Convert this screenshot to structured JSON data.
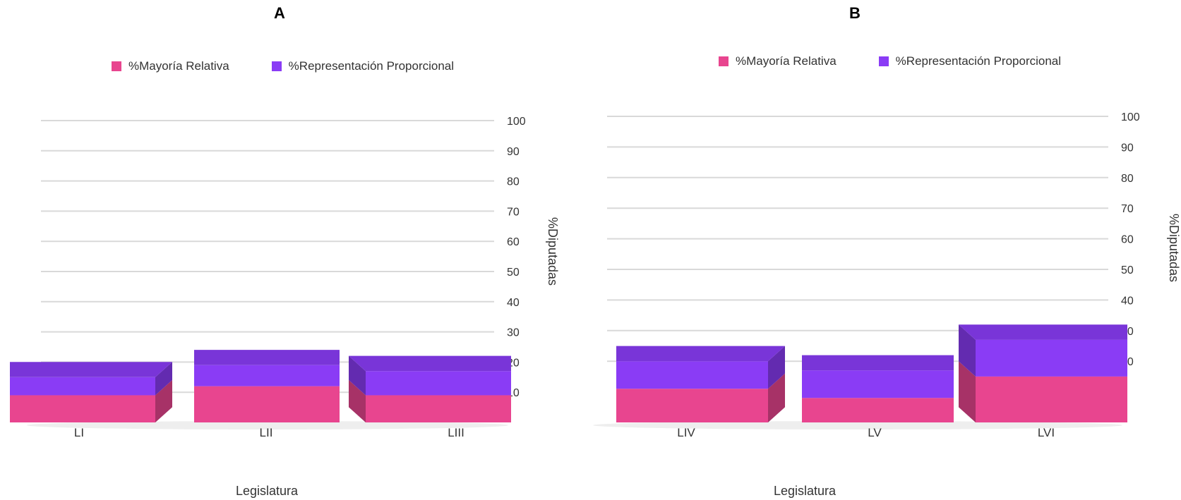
{
  "chart_data": [
    {
      "type": "bar",
      "stacked": true,
      "title": "A",
      "categories": [
        "LI",
        "LII",
        "LIII"
      ],
      "series": [
        {
          "name": "%Mayoría Relativa",
          "values": [
            9,
            12,
            9
          ],
          "color": "#e8458f"
        },
        {
          "name": "%Representación Proporcional",
          "values": [
            6,
            7,
            8
          ],
          "color": "#8a3cf5"
        }
      ],
      "xlabel": "Legislatura",
      "ylabel": "%Diputadas",
      "ylim": [
        0,
        100
      ],
      "yticks": [
        "10",
        "20",
        "30",
        "40",
        "50",
        "60",
        "70",
        "80",
        "90",
        "100"
      ],
      "legend": "top",
      "grid": true
    },
    {
      "type": "bar",
      "stacked": true,
      "title": "B",
      "categories": [
        "LIV",
        "LV",
        "LVI"
      ],
      "series": [
        {
          "name": "%Mayoría Relativa",
          "values": [
            11,
            8,
            15
          ],
          "color": "#e8458f"
        },
        {
          "name": "%Representación Proporcional",
          "values": [
            9,
            9,
            12
          ],
          "color": "#8a3cf5"
        }
      ],
      "xlabel": "Legislatura",
      "ylabel": "%Diputadas",
      "ylim": [
        0,
        100
      ],
      "yticks": [
        "20",
        "30",
        "40",
        "50",
        "60",
        "70",
        "80",
        "90",
        "100"
      ],
      "legend": "top",
      "grid": true
    }
  ]
}
